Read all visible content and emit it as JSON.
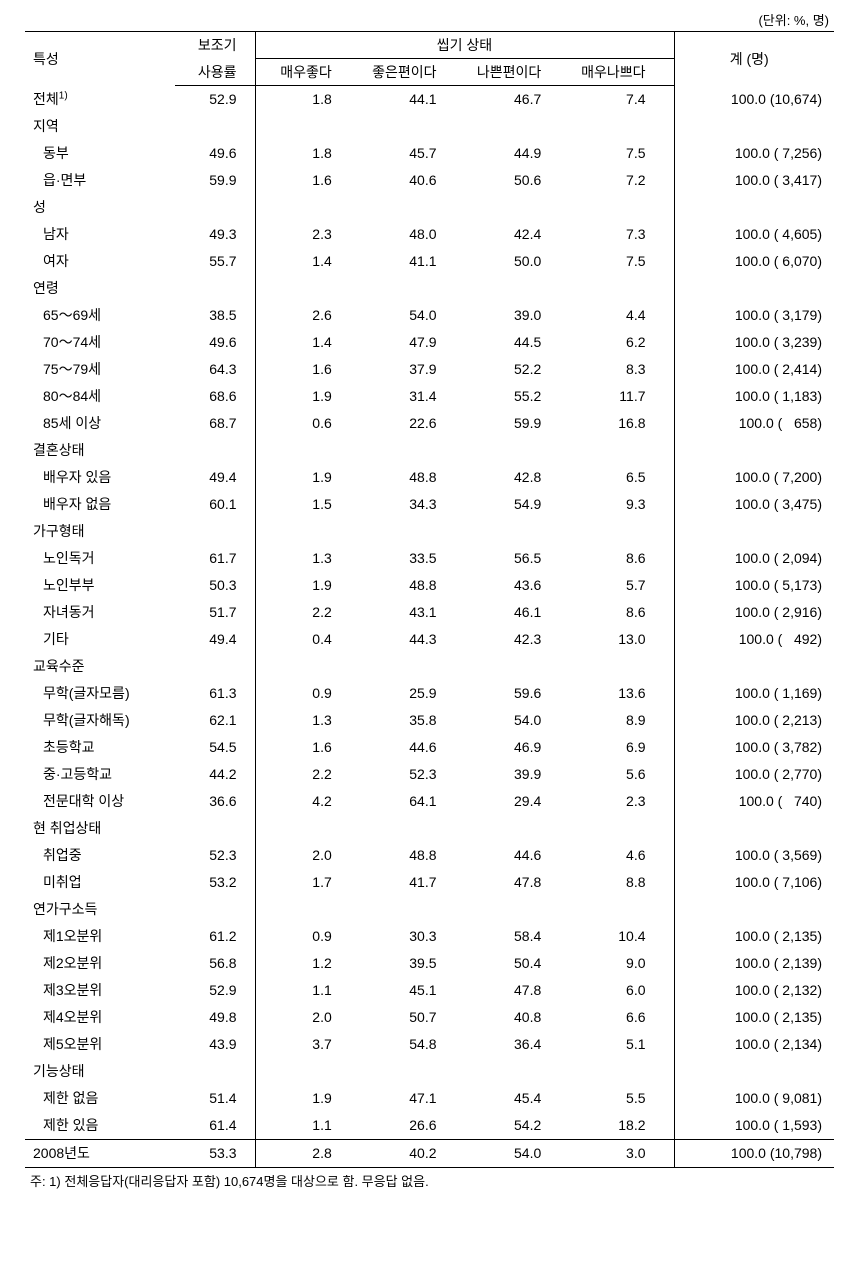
{
  "unit_label": "(단위: %, 명)",
  "headers": {
    "characteristic": "특성",
    "usage_rate": "보조기",
    "usage_rate_sub": "사용률",
    "chewing_state": "씹기 상태",
    "very_good": "매우좋다",
    "good": "좋은편이다",
    "bad": "나쁜편이다",
    "very_bad": "매우나쁘다",
    "total": "계 (명)"
  },
  "rows": [
    {
      "type": "data",
      "label": "전체",
      "sup": "1)",
      "usage": "52.9",
      "v1": "1.8",
      "v2": "44.1",
      "v3": "46.7",
      "v4": "7.4",
      "total": "100.0 (10,674)",
      "indent": false
    },
    {
      "type": "section",
      "label": "지역"
    },
    {
      "type": "data",
      "label": "동부",
      "usage": "49.6",
      "v1": "1.8",
      "v2": "45.7",
      "v3": "44.9",
      "v4": "7.5",
      "total": "100.0 ( 7,256)",
      "indent": true
    },
    {
      "type": "data",
      "label": "읍·면부",
      "usage": "59.9",
      "v1": "1.6",
      "v2": "40.6",
      "v3": "50.6",
      "v4": "7.2",
      "total": "100.0 ( 3,417)",
      "indent": true
    },
    {
      "type": "section",
      "label": "성"
    },
    {
      "type": "data",
      "label": "남자",
      "usage": "49.3",
      "v1": "2.3",
      "v2": "48.0",
      "v3": "42.4",
      "v4": "7.3",
      "total": "100.0 ( 4,605)",
      "indent": true
    },
    {
      "type": "data",
      "label": "여자",
      "usage": "55.7",
      "v1": "1.4",
      "v2": "41.1",
      "v3": "50.0",
      "v4": "7.5",
      "total": "100.0 ( 6,070)",
      "indent": true
    },
    {
      "type": "section",
      "label": "연령"
    },
    {
      "type": "data",
      "label": "65～69세",
      "usage": "38.5",
      "v1": "2.6",
      "v2": "54.0",
      "v3": "39.0",
      "v4": "4.4",
      "total": "100.0 ( 3,179)",
      "indent": true
    },
    {
      "type": "data",
      "label": "70～74세",
      "usage": "49.6",
      "v1": "1.4",
      "v2": "47.9",
      "v3": "44.5",
      "v4": "6.2",
      "total": "100.0 ( 3,239)",
      "indent": true
    },
    {
      "type": "data",
      "label": "75～79세",
      "usage": "64.3",
      "v1": "1.6",
      "v2": "37.9",
      "v3": "52.2",
      "v4": "8.3",
      "total": "100.0 ( 2,414)",
      "indent": true
    },
    {
      "type": "data",
      "label": "80～84세",
      "usage": "68.6",
      "v1": "1.9",
      "v2": "31.4",
      "v3": "55.2",
      "v4": "11.7",
      "total": "100.0 ( 1,183)",
      "indent": true
    },
    {
      "type": "data",
      "label": "85세 이상",
      "usage": "68.7",
      "v1": "0.6",
      "v2": "22.6",
      "v3": "59.9",
      "v4": "16.8",
      "total": "100.0 (   658)",
      "indent": true
    },
    {
      "type": "section",
      "label": "결혼상태"
    },
    {
      "type": "data",
      "label": "배우자 있음",
      "usage": "49.4",
      "v1": "1.9",
      "v2": "48.8",
      "v3": "42.8",
      "v4": "6.5",
      "total": "100.0 ( 7,200)",
      "indent": true
    },
    {
      "type": "data",
      "label": "배우자 없음",
      "usage": "60.1",
      "v1": "1.5",
      "v2": "34.3",
      "v3": "54.9",
      "v4": "9.3",
      "total": "100.0 ( 3,475)",
      "indent": true
    },
    {
      "type": "section",
      "label": "가구형태"
    },
    {
      "type": "data",
      "label": "노인독거",
      "usage": "61.7",
      "v1": "1.3",
      "v2": "33.5",
      "v3": "56.5",
      "v4": "8.6",
      "total": "100.0 ( 2,094)",
      "indent": true
    },
    {
      "type": "data",
      "label": "노인부부",
      "usage": "50.3",
      "v1": "1.9",
      "v2": "48.8",
      "v3": "43.6",
      "v4": "5.7",
      "total": "100.0 ( 5,173)",
      "indent": true
    },
    {
      "type": "data",
      "label": "자녀동거",
      "usage": "51.7",
      "v1": "2.2",
      "v2": "43.1",
      "v3": "46.1",
      "v4": "8.6",
      "total": "100.0 ( 2,916)",
      "indent": true
    },
    {
      "type": "data",
      "label": "기타",
      "usage": "49.4",
      "v1": "0.4",
      "v2": "44.3",
      "v3": "42.3",
      "v4": "13.0",
      "total": "100.0 (   492)",
      "indent": true
    },
    {
      "type": "section",
      "label": "교육수준"
    },
    {
      "type": "data",
      "label": "무학(글자모름)",
      "usage": "61.3",
      "v1": "0.9",
      "v2": "25.9",
      "v3": "59.6",
      "v4": "13.6",
      "total": "100.0 ( 1,169)",
      "indent": true
    },
    {
      "type": "data",
      "label": "무학(글자해독)",
      "usage": "62.1",
      "v1": "1.3",
      "v2": "35.8",
      "v3": "54.0",
      "v4": "8.9",
      "total": "100.0 ( 2,213)",
      "indent": true
    },
    {
      "type": "data",
      "label": "초등학교",
      "usage": "54.5",
      "v1": "1.6",
      "v2": "44.6",
      "v3": "46.9",
      "v4": "6.9",
      "total": "100.0 ( 3,782)",
      "indent": true
    },
    {
      "type": "data",
      "label": "중·고등학교",
      "usage": "44.2",
      "v1": "2.2",
      "v2": "52.3",
      "v3": "39.9",
      "v4": "5.6",
      "total": "100.0 ( 2,770)",
      "indent": true
    },
    {
      "type": "data",
      "label": "전문대학 이상",
      "usage": "36.6",
      "v1": "4.2",
      "v2": "64.1",
      "v3": "29.4",
      "v4": "2.3",
      "total": "100.0 (   740)",
      "indent": true
    },
    {
      "type": "section",
      "label": "현 취업상태"
    },
    {
      "type": "data",
      "label": "취업중",
      "usage": "52.3",
      "v1": "2.0",
      "v2": "48.8",
      "v3": "44.6",
      "v4": "4.6",
      "total": "100.0 ( 3,569)",
      "indent": true
    },
    {
      "type": "data",
      "label": "미취업",
      "usage": "53.2",
      "v1": "1.7",
      "v2": "41.7",
      "v3": "47.8",
      "v4": "8.8",
      "total": "100.0 ( 7,106)",
      "indent": true
    },
    {
      "type": "section",
      "label": "연가구소득"
    },
    {
      "type": "data",
      "label": "제1오분위",
      "usage": "61.2",
      "v1": "0.9",
      "v2": "30.3",
      "v3": "58.4",
      "v4": "10.4",
      "total": "100.0 ( 2,135)",
      "indent": true
    },
    {
      "type": "data",
      "label": "제2오분위",
      "usage": "56.8",
      "v1": "1.2",
      "v2": "39.5",
      "v3": "50.4",
      "v4": "9.0",
      "total": "100.0 ( 2,139)",
      "indent": true
    },
    {
      "type": "data",
      "label": "제3오분위",
      "usage": "52.9",
      "v1": "1.1",
      "v2": "45.1",
      "v3": "47.8",
      "v4": "6.0",
      "total": "100.0 ( 2,132)",
      "indent": true
    },
    {
      "type": "data",
      "label": "제4오분위",
      "usage": "49.8",
      "v1": "2.0",
      "v2": "50.7",
      "v3": "40.8",
      "v4": "6.6",
      "total": "100.0 ( 2,135)",
      "indent": true
    },
    {
      "type": "data",
      "label": "제5오분위",
      "usage": "43.9",
      "v1": "3.7",
      "v2": "54.8",
      "v3": "36.4",
      "v4": "5.1",
      "total": "100.0 ( 2,134)",
      "indent": true
    },
    {
      "type": "section",
      "label": "기능상태"
    },
    {
      "type": "data",
      "label": "제한 없음",
      "usage": "51.4",
      "v1": "1.9",
      "v2": "47.1",
      "v3": "45.4",
      "v4": "5.5",
      "total": "100.0 ( 9,081)",
      "indent": true
    },
    {
      "type": "data",
      "label": "제한 있음",
      "usage": "61.4",
      "v1": "1.1",
      "v2": "26.6",
      "v3": "54.2",
      "v4": "18.2",
      "total": "100.0 ( 1,593)",
      "indent": true
    },
    {
      "type": "data",
      "label": "2008년도",
      "usage": "53.3",
      "v1": "2.8",
      "v2": "40.2",
      "v3": "54.0",
      "v4": "3.0",
      "total": "100.0 (10,798)",
      "indent": false,
      "last": true
    }
  ],
  "footnote": "주: 1) 전체응답자(대리응답자 포함) 10,674명을 대상으로 함. 무응답 없음."
}
